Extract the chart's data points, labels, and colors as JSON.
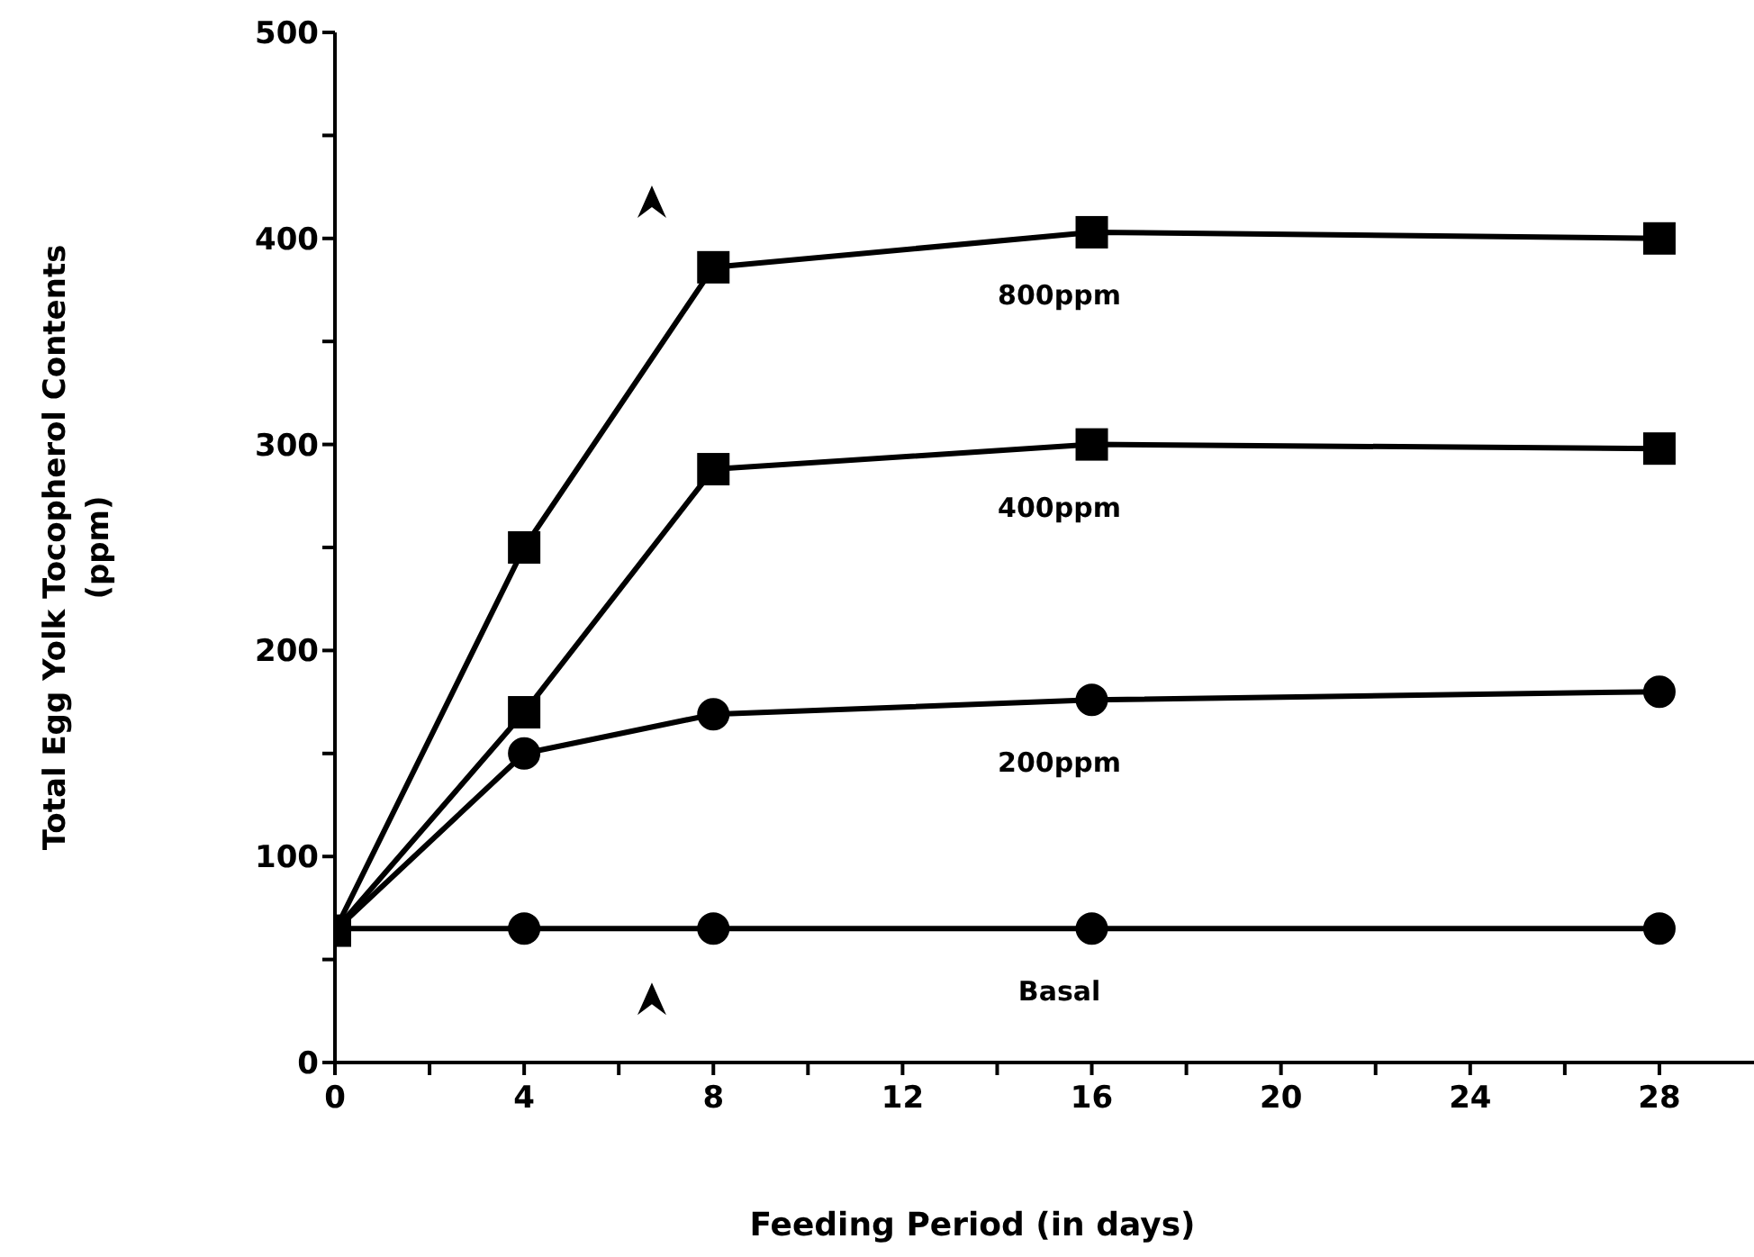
{
  "chart_data": {
    "type": "line",
    "xlabel": "Feeding Period (in days)",
    "ylabel": "Total Egg Yolk Tocopherol Contents (ppm)",
    "x": [
      0,
      4,
      8,
      16,
      28
    ],
    "series": [
      {
        "name": "800ppm",
        "color": "#000000",
        "marker": "square",
        "values": [
          64,
          250,
          386,
          403,
          400
        ]
      },
      {
        "name": "400ppm",
        "color": "#000000",
        "marker": "square",
        "values": [
          64,
          170,
          288,
          300,
          298
        ]
      },
      {
        "name": "200ppm",
        "color": "#000000",
        "marker": "circle",
        "values": [
          64,
          150,
          169,
          176,
          180
        ]
      },
      {
        "name": "Basal",
        "color": "#000000",
        "marker": "circle",
        "values": [
          65,
          65,
          65,
          65,
          65
        ]
      }
    ],
    "xlim": [
      0,
      30
    ],
    "xticks": [
      0,
      {
        "value": 2,
        "label": null
      },
      4,
      {
        "value": 6,
        "label": null
      },
      8,
      {
        "value": 10,
        "label": null
      },
      12,
      {
        "value": 14,
        "label": null
      },
      16,
      {
        "value": 18,
        "label": null
      },
      20,
      {
        "value": 22,
        "label": null
      },
      24,
      {
        "value": 26,
        "label": null
      },
      28
    ],
    "ylim": [
      0,
      500
    ],
    "yticks": [
      0,
      {
        "value": 50,
        "label": null
      },
      100,
      {
        "value": 150,
        "label": null
      },
      200,
      {
        "value": 250,
        "label": null
      },
      300,
      {
        "value": 350,
        "label": null
      },
      400,
      {
        "value": 450,
        "label": null
      },
      500
    ],
    "grid": false,
    "legend": false,
    "line_style": "solid"
  }
}
